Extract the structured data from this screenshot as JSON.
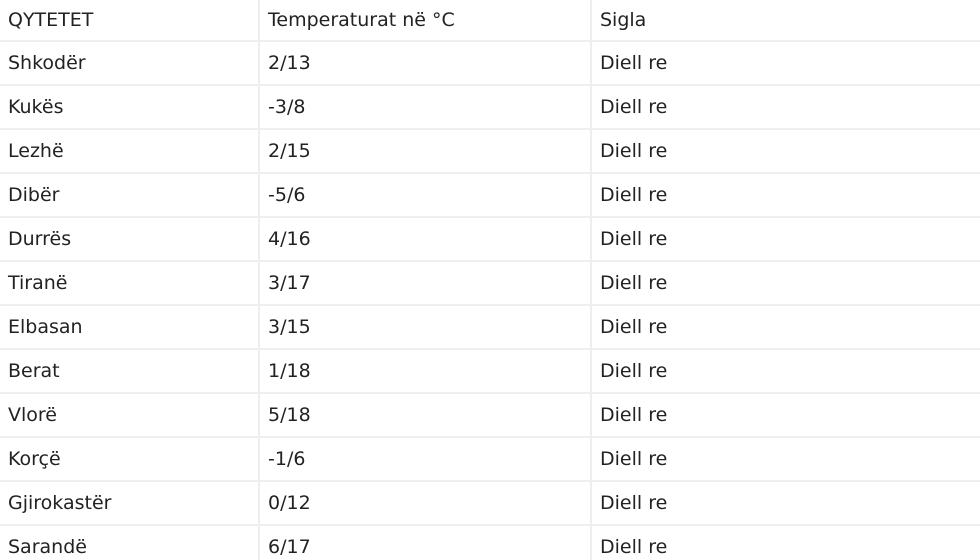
{
  "table": {
    "headers": [
      "QYTETET",
      "Temperaturat në °C",
      "Sigla"
    ],
    "rows": [
      [
        "Shkodër",
        "2/13",
        "Diell re"
      ],
      [
        "Kukës",
        "-3/8",
        "Diell re"
      ],
      [
        "Lezhë",
        "2/15",
        "Diell re"
      ],
      [
        "Dibër",
        "-5/6",
        "Diell re"
      ],
      [
        "Durrës",
        "4/16",
        "Diell re"
      ],
      [
        "Tiranë",
        "3/17",
        "Diell re"
      ],
      [
        "Elbasan",
        "3/15",
        "Diell re"
      ],
      [
        "Berat",
        "1/18",
        "Diell re"
      ],
      [
        "Vlorë",
        "5/18",
        "Diell re"
      ],
      [
        "Korçë",
        "-1/6",
        "Diell re"
      ],
      [
        "Gjirokastër",
        "0/12",
        "Diell re"
      ],
      [
        "Sarandë",
        "6/17",
        "Diell re"
      ]
    ]
  }
}
